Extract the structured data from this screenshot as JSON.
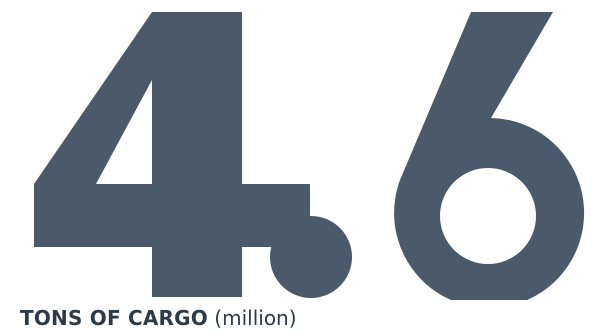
{
  "stat": {
    "integer_digit": "4",
    "decimal_digit": "6",
    "full_value": "4.6",
    "color": "#4a5a6a"
  },
  "caption": {
    "label": "TONS OF CARGO",
    "unit": " (million)",
    "color": "#2e3a47"
  }
}
